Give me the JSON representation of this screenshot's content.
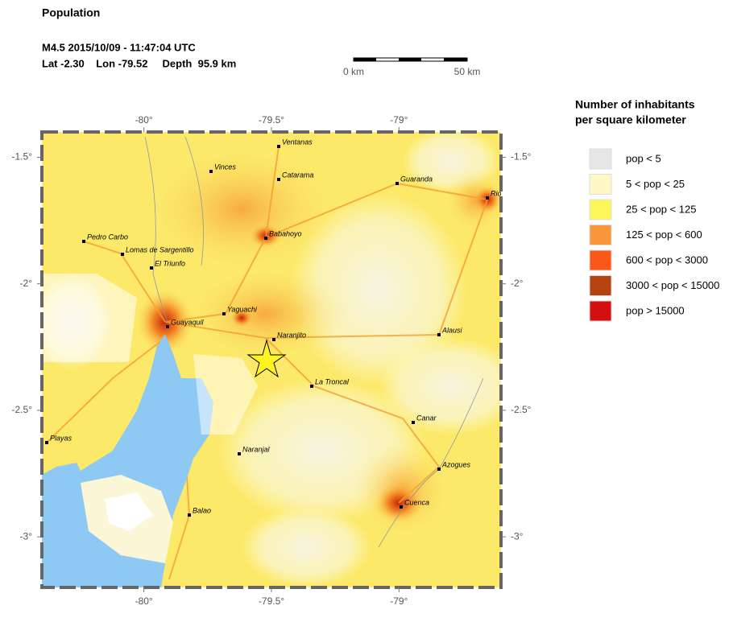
{
  "header": {
    "title": "Population",
    "event": "M4.5  2015/10/09 - 11:47:04 UTC",
    "location": "Lat -2.30    Lon -79.52     Depth  95.9 km"
  },
  "scale_bar": {
    "start": "0 km",
    "end": "50 km"
  },
  "map": {
    "xlim": [
      -80.4,
      -78.6
    ],
    "ylim": [
      -3.2,
      -1.4
    ],
    "xticks": [
      {
        "value": -80,
        "label": "-80°"
      },
      {
        "value": -79.5,
        "label": "-79.5°"
      },
      {
        "value": -79,
        "label": "-79°"
      }
    ],
    "yticks": [
      {
        "value": -1.5,
        "label": "-1.5°"
      },
      {
        "value": -2,
        "label": "-2°"
      },
      {
        "value": -2.5,
        "label": "-2.5°"
      },
      {
        "value": -3,
        "label": "-3°"
      }
    ],
    "cities": [
      "Ventanas",
      "Vinces",
      "Catarama",
      "Guaranda",
      "Pedro Carbo",
      "Babahoyo",
      "Lomas de Sargentillo",
      "El Triunfo",
      "Yaguachi",
      "Guayaquil",
      "Naranjito",
      "Alausi",
      "La Troncal",
      "Canar",
      "Playas",
      "Naranjal",
      "Azogues",
      "Cuenca",
      "Balao",
      "Riobamba"
    ]
  },
  "legend": {
    "title": [
      "Number of inhabitants",
      "per square kilometer"
    ],
    "items": [
      {
        "label": "pop < 5",
        "color": "#e6e6e6"
      },
      {
        "label": "5 < pop < 25",
        "color": "#fdf8c4"
      },
      {
        "label": "25 < pop < 125",
        "color": "#fbf65a"
      },
      {
        "label": "125 < pop < 600",
        "color": "#f9963a"
      },
      {
        "label": "600 < pop < 3000",
        "color": "#fb5818"
      },
      {
        "label": "3000 < pop < 15000",
        "color": "#b5420f"
      },
      {
        "label": "pop > 15000",
        "color": "#d40f0f"
      }
    ]
  }
}
